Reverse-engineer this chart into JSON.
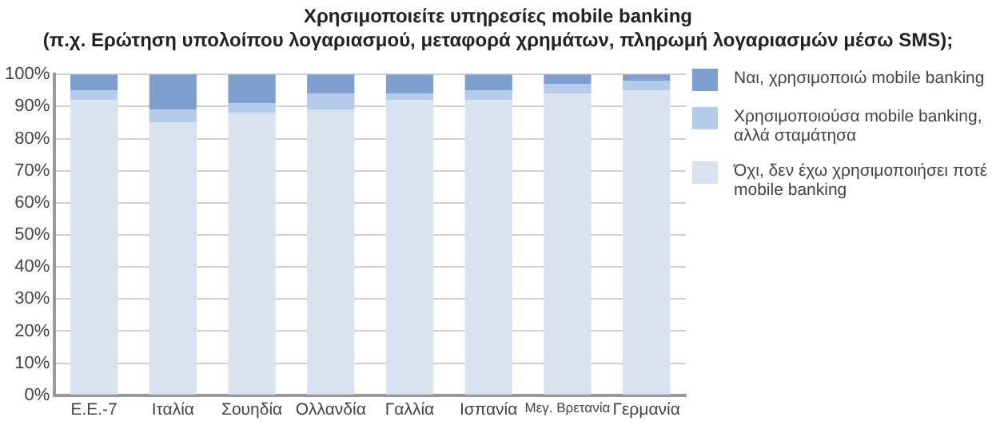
{
  "chart_data": {
    "type": "bar",
    "stacked": true,
    "title": "Χρησιμοποιείτε υπηρεσίες mobile banking",
    "subtitle": "(π.χ. Ερώτηση υπολοίπου λογαριασμού, μεταφορά χρημάτων, πληρωμή λογαριασμών μέσω SMS);",
    "categories": [
      "Ε.Ε.-7",
      "Ιταλία",
      "Σουηδία",
      "Ολλανδία",
      "Γαλλία",
      "Ισπανία",
      "Μεγ. Βρετανία",
      "Γερμανία"
    ],
    "series": [
      {
        "name": "Όχι, δεν έχω χρησιμοποιήσει ποτέ mobile banking",
        "color": "#d9e3f0",
        "values": [
          92,
          85,
          88,
          89,
          92,
          92,
          94,
          95
        ]
      },
      {
        "name": "Χρησιμοποιούσα mobile banking, αλλά σταμάτησα",
        "color": "#b4cbe9",
        "values": [
          3,
          4,
          3,
          5,
          2,
          3,
          3,
          3
        ]
      },
      {
        "name": "Ναι, χρησιμοποιώ mobile banking",
        "color": "#7f9fcf",
        "values": [
          5,
          11,
          9,
          6,
          6,
          5,
          3,
          2
        ]
      }
    ],
    "ylim": [
      0,
      100
    ],
    "yticks": [
      {
        "value": 0,
        "label": "0%"
      },
      {
        "value": 10,
        "label": "10%"
      },
      {
        "value": 20,
        "label": "20%"
      },
      {
        "value": 30,
        "label": "30%"
      },
      {
        "value": 40,
        "label": "40%"
      },
      {
        "value": 50,
        "label": "50%"
      },
      {
        "value": 60,
        "label": "60%"
      },
      {
        "value": 70,
        "label": "70%"
      },
      {
        "value": 80,
        "label": "80%"
      },
      {
        "value": 90,
        "label": "90%"
      },
      {
        "value": 100,
        "label": "100%"
      }
    ],
    "grid": "y",
    "legend": "right"
  }
}
